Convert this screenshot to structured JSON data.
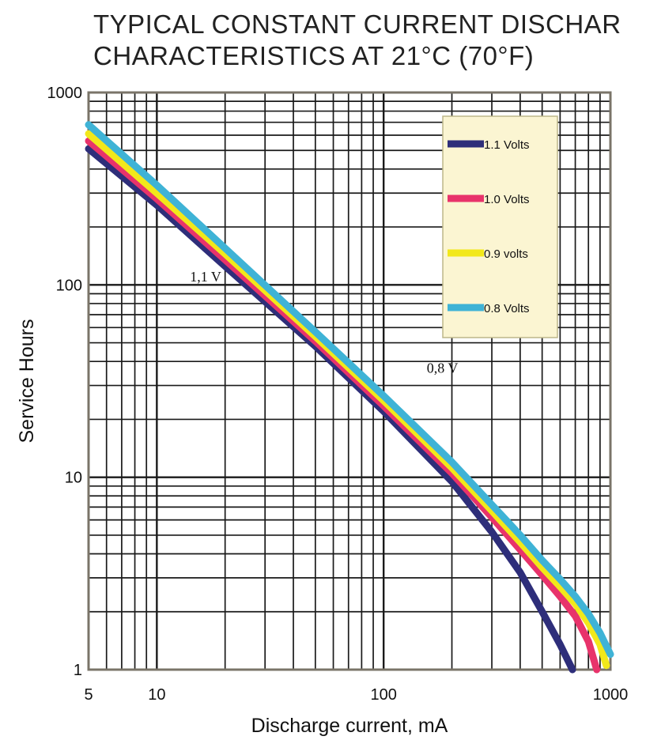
{
  "chart_data": {
    "type": "line",
    "title_lines": [
      "TYPICAL CONSTANT CURRENT DISCHAR",
      "CHARACTERISTICS AT 21°C (70°F)"
    ],
    "xlabel": "Discharge current, mA",
    "ylabel": "Service Hours",
    "x_scale": "log",
    "y_scale": "log",
    "xlim": [
      5,
      1000
    ],
    "ylim": [
      1,
      1000
    ],
    "x_ticks": [
      {
        "value": 5,
        "label": "5"
      },
      {
        "value": 10,
        "label": "10"
      },
      {
        "value": 100,
        "label": "100"
      },
      {
        "value": 1000,
        "label": "1000"
      }
    ],
    "y_ticks": [
      {
        "value": 1,
        "label": "1"
      },
      {
        "value": 10,
        "label": "10"
      },
      {
        "value": 100,
        "label": "100"
      },
      {
        "value": 1000,
        "label": "1000"
      }
    ],
    "grid": true,
    "legend_position": "top-right",
    "series": [
      {
        "name": "1.1 Volts",
        "color": "#2e2e7a",
        "points": [
          [
            5,
            510
          ],
          [
            10,
            260
          ],
          [
            20,
            125
          ],
          [
            50,
            48
          ],
          [
            100,
            22
          ],
          [
            200,
            9.5
          ],
          [
            300,
            5.2
          ],
          [
            400,
            3.2
          ],
          [
            500,
            2.0
          ],
          [
            600,
            1.35
          ],
          [
            680,
            1.0
          ]
        ]
      },
      {
        "name": "1.0 Volts",
        "color": "#e8336b",
        "points": [
          [
            5,
            560
          ],
          [
            10,
            280
          ],
          [
            20,
            135
          ],
          [
            50,
            51
          ],
          [
            100,
            23.5
          ],
          [
            200,
            10.5
          ],
          [
            300,
            6.2
          ],
          [
            400,
            4.2
          ],
          [
            500,
            3.1
          ],
          [
            600,
            2.4
          ],
          [
            700,
            1.9
          ],
          [
            800,
            1.4
          ],
          [
            870,
            1.0
          ]
        ]
      },
      {
        "name": "0.9 volts",
        "color": "#f2e81a",
        "points": [
          [
            5,
            610
          ],
          [
            10,
            300
          ],
          [
            20,
            145
          ],
          [
            50,
            54
          ],
          [
            100,
            25
          ],
          [
            200,
            11.2
          ],
          [
            300,
            6.7
          ],
          [
            400,
            4.6
          ],
          [
            500,
            3.4
          ],
          [
            600,
            2.7
          ],
          [
            700,
            2.2
          ],
          [
            800,
            1.75
          ],
          [
            900,
            1.35
          ],
          [
            960,
            1.05
          ]
        ]
      },
      {
        "name": "0.8 Volts",
        "color": "#3fb3d6",
        "points": [
          [
            5,
            680
          ],
          [
            10,
            330
          ],
          [
            20,
            155
          ],
          [
            50,
            57
          ],
          [
            100,
            26.5
          ],
          [
            200,
            12
          ],
          [
            300,
            7.2
          ],
          [
            400,
            5.0
          ],
          [
            500,
            3.7
          ],
          [
            600,
            2.95
          ],
          [
            700,
            2.4
          ],
          [
            800,
            1.95
          ],
          [
            900,
            1.55
          ],
          [
            1000,
            1.2
          ]
        ]
      }
    ],
    "annotations": [
      {
        "text": "1,1 V",
        "x": 14,
        "y": 104
      },
      {
        "text": "0,8 V",
        "x": 155,
        "y": 35
      }
    ]
  }
}
